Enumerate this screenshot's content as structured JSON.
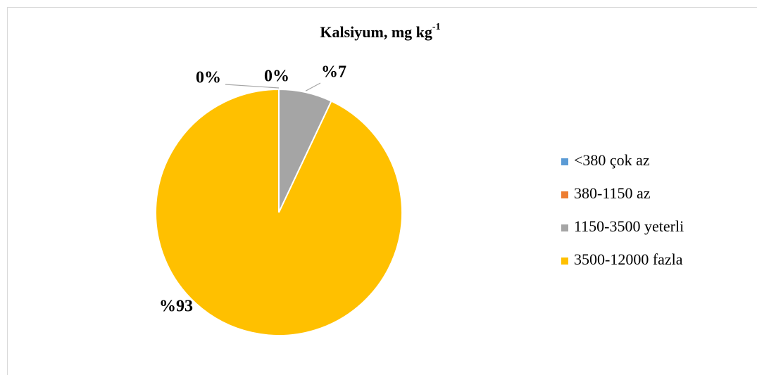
{
  "chart_data": {
    "type": "pie",
    "title": "Kalsiyum, mg kg",
    "title_superscript": "-1",
    "categories": [
      "<380 çok az",
      "380-1150 az",
      "1150-3500 yeterli",
      "3500-12000 fazla"
    ],
    "values": [
      0,
      0,
      7,
      93
    ],
    "value_labels": [
      "0%",
      "0%",
      "%7",
      "%93"
    ],
    "colors": [
      "#5b9bd5",
      "#ed7d31",
      "#a5a5a5",
      "#ffc000"
    ],
    "legend": "right"
  }
}
